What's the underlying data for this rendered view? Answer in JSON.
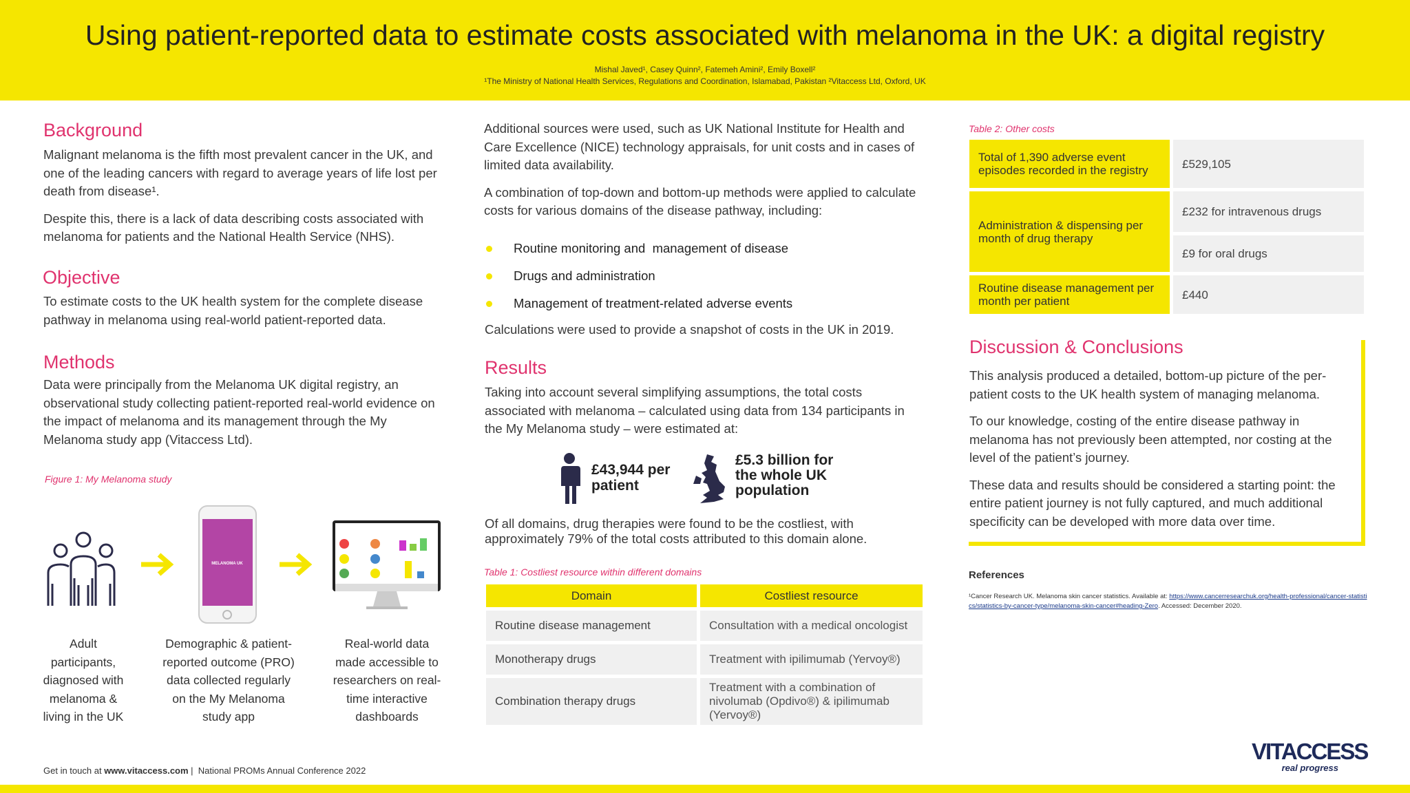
{
  "header": {
    "title": "Using patient-reported data to estimate costs associated with melanoma in the UK: a digital registry",
    "authors": "Mishal Javed¹, Casey Quinn², Fatemeh Amini², Emily Boxell²",
    "affiliations": "¹The Ministry of National Health Services, Regulations and Coordination, Islamabad, Pakistan ²Vitaccess Ltd, Oxford, UK"
  },
  "background": {
    "heading": "Background",
    "paragraphs": [
      "Malignant melanoma is the fifth most prevalent cancer in the UK, and one of the leading cancers with regard to average years of life lost per death from disease¹.",
      "Despite this, there is a lack of data describing costs associated with melanoma for patients and the National Health Service (NHS)."
    ]
  },
  "objective": {
    "heading": "Objective",
    "paragraph": "To estimate costs to the UK health system for the complete disease pathway in melanoma using real-world patient-reported data."
  },
  "methods": {
    "heading": "Methods",
    "paragraph": "Data were principally from the Melanoma UK digital registry, an observational study collecting patient-reported real-world evidence on the impact of melanoma and its management through the My Melanoma study app (Vitaccess Ltd).",
    "intro": [
      "Additional sources were used, such as UK National Institute for Health and Care Excellence (NICE) technology appraisals, for unit costs and in cases of limited data availability.",
      "A combination of top-down and bottom-up methods were applied to calculate costs for various domains of the disease pathway, including:"
    ],
    "bullets": [
      "Routine monitoring and  management of disease",
      "Drugs and administration",
      "Management of treatment-related adverse events"
    ],
    "closing": "Calculations were used to provide a snapshot of costs in the UK in 2019."
  },
  "figure": {
    "caption": "Figure 1: My Melanoma study",
    "app_label": "MELANOMA UK",
    "steps": [
      "Adult participants, diagnosed with melanoma & living in the UK",
      "Demographic & patient-reported outcome (PRO) data collected regularly on the My Melanoma study app",
      "Real-world data made accessible to researchers on real-time interactive dashboards"
    ]
  },
  "results": {
    "heading": "Results",
    "paragraph": "Taking into account several simplifying assumptions, the total costs associated with melanoma – calculated using data from 134 participants in the My Melanoma study – were estimated at:",
    "stats": [
      "£43,944 per patient",
      "£5.3 billion for the whole UK population"
    ],
    "closing": "Of all domains, drug therapies were found to be the costliest, with approximately 79% of the total costs attributed to this domain alone."
  },
  "table1": {
    "caption": "Table 1: Costliest resource within different domains",
    "header": [
      "Domain",
      "Costliest resource"
    ],
    "rows": [
      [
        "Routine disease management",
        "Consultation with a medical oncologist"
      ],
      [
        "Monotherapy drugs",
        "Treatment with ipilimumab (Yervoy®)"
      ],
      [
        "Combination therapy drugs",
        "Treatment with a combination of nivolumab (Opdivo®) & ipilimumab (Yervoy®)"
      ]
    ]
  },
  "table2": {
    "caption": "Table 2: Other costs",
    "rows": [
      [
        "Total of 1,390 adverse event episodes recorded in the registry",
        "£529,105"
      ],
      [
        "Administration & dispensing per month of drug therapy",
        "£232 for intravenous drugs",
        "£9 for oral drugs"
      ],
      [
        "Routine disease management per month per patient",
        "£440"
      ]
    ]
  },
  "discussion": {
    "heading": "Discussion & Conclusions",
    "paragraphs": [
      "This analysis produced a detailed, bottom-up picture of the per-patient costs to the UK health system of managing melanoma.",
      "To our knowledge, costing of the entire disease pathway in melanoma has not previously been attempted, nor costing at the level of the patient’s journey.",
      "These data and results should be considered a starting point: the entire patient journey is not fully captured, and much additional specificity can be developed with more data over time."
    ]
  },
  "references": {
    "heading": "References",
    "text": "¹Cancer Research UK. Melanoma skin cancer statistics. Available at:",
    "link": "https://www.cancerresearchuk.org/health-professional/cancer-statistics/statistics-by-cancer-type/melanoma-skin-cancer#heading-Zero",
    "accessed": ". Accessed: December 2020."
  },
  "footer": {
    "prefix": "Get in touch at",
    "website": "www.vitaccess.com",
    "conference": "|  National PROMs Annual Conference 2022"
  },
  "logo": {
    "name": "VITACCESS",
    "tagline": "real progress"
  }
}
